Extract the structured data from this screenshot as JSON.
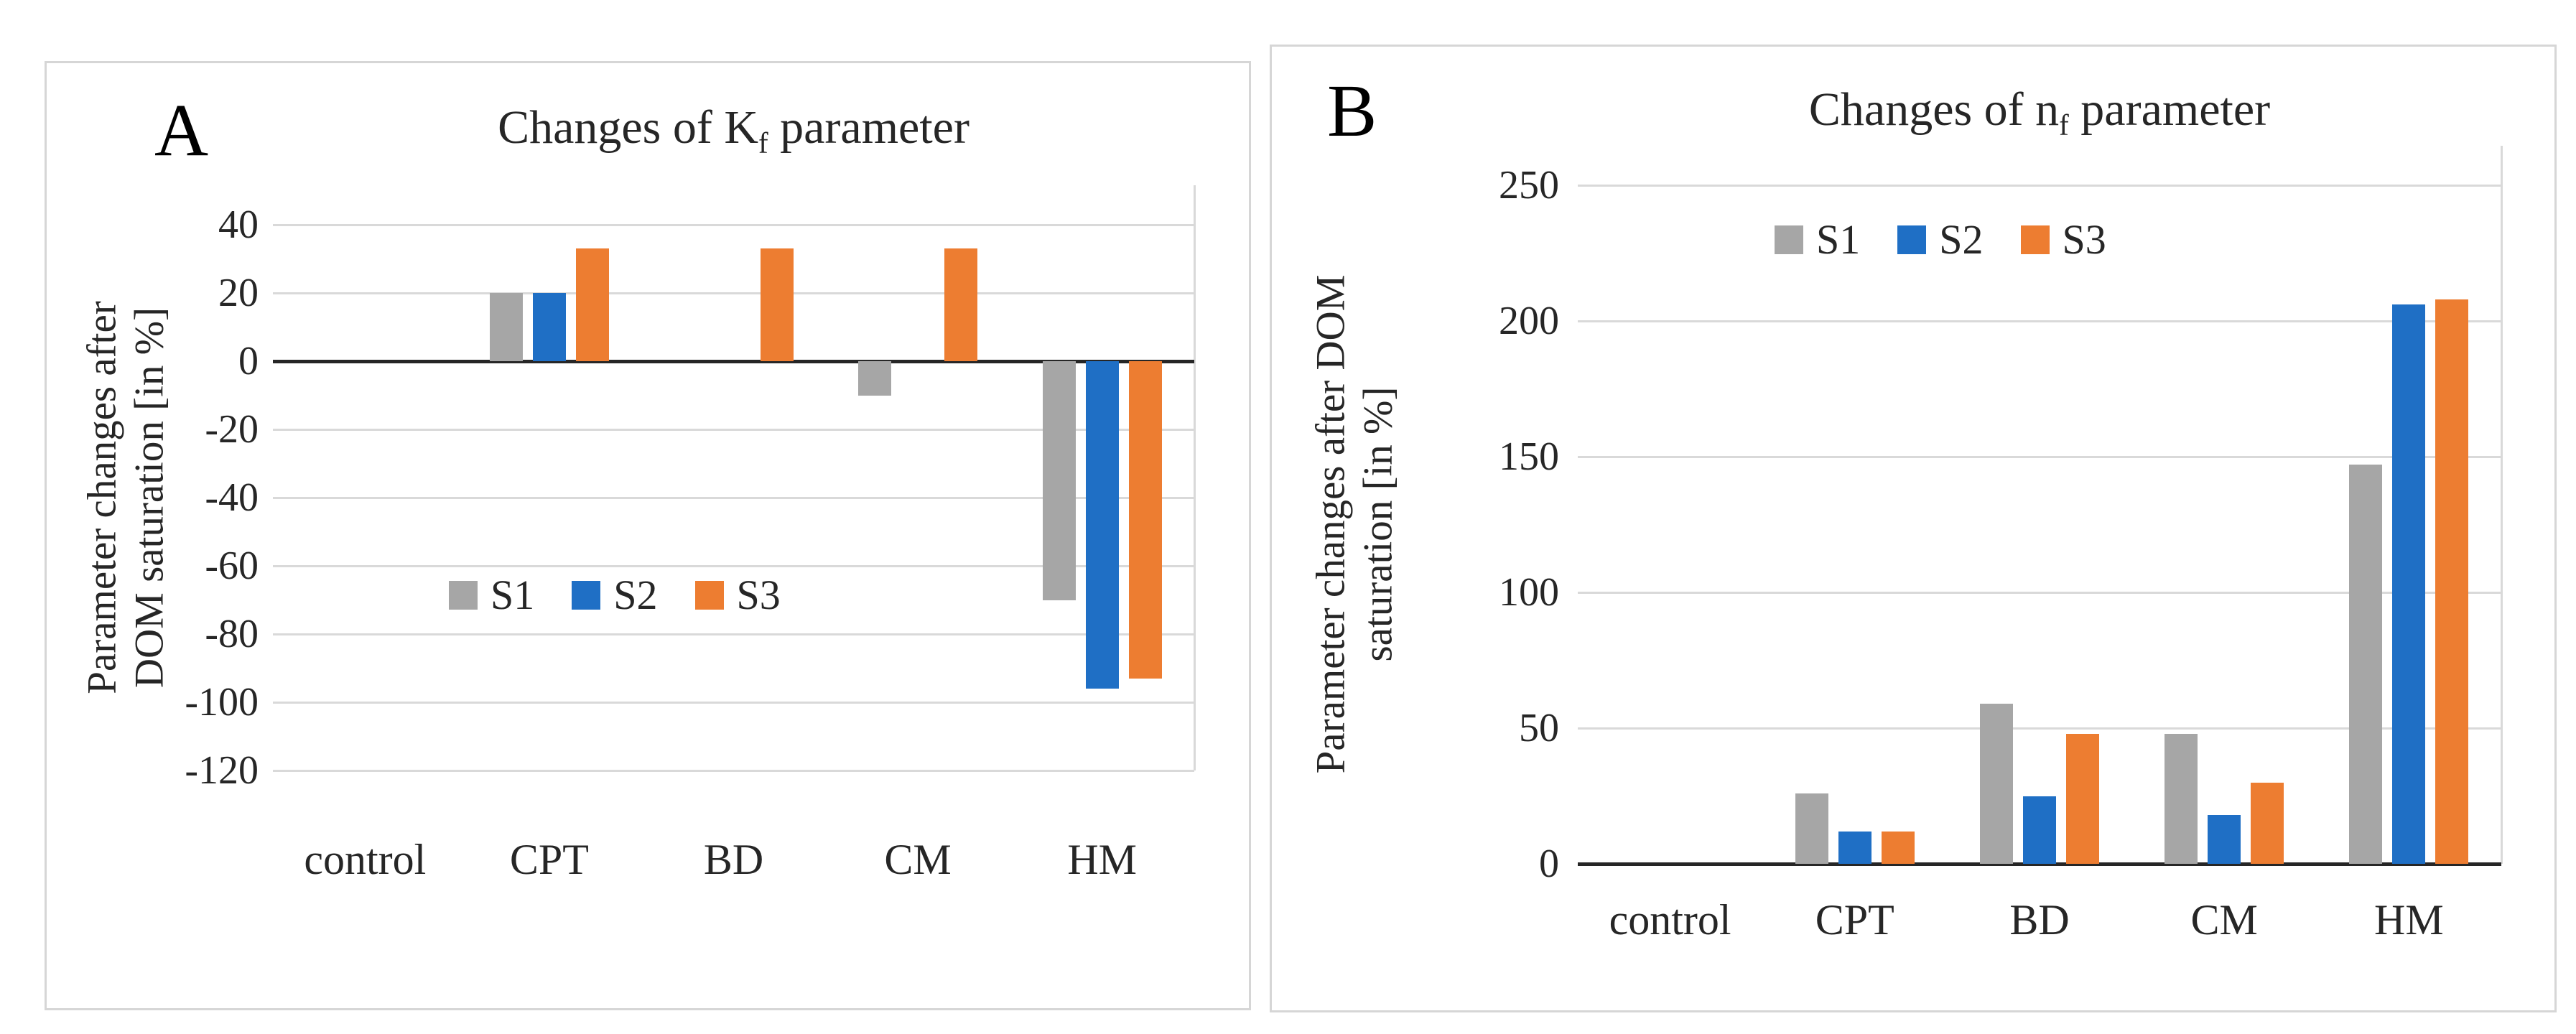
{
  "panels": [
    {
      "label": "A",
      "title": {
        "prefix": "Changes of K",
        "sub": "f",
        "suffix": " parameter"
      },
      "ylabel_line1": "Parameter changes after",
      "ylabel_line2": "DOM saturation [in %]"
    },
    {
      "label": "B",
      "title": {
        "prefix": "Changes of n",
        "sub": "f",
        "suffix": " parameter"
      },
      "ylabel_line1": "Parameter changes after DOM",
      "ylabel_line2": "saturation [in %]"
    }
  ],
  "chart_data": [
    {
      "type": "bar",
      "title": "Changes of Kf parameter",
      "xlabel": "",
      "ylabel": "Parameter changes after DOM saturation [in %]",
      "categories": [
        "control",
        "CPT",
        "BD",
        "CM",
        "HM"
      ],
      "series": [
        {
          "name": "S1",
          "color": "#a6a6a6",
          "values": [
            0,
            20,
            0,
            -10,
            -70
          ]
        },
        {
          "name": "S2",
          "color": "#1f6fc5",
          "values": [
            0,
            20,
            0,
            0,
            -96
          ]
        },
        {
          "name": "S3",
          "color": "#ed7d31",
          "values": [
            0,
            33,
            33,
            33,
            -93
          ]
        }
      ],
      "ylim": [
        -120,
        40
      ],
      "ytick_step": 20,
      "grid": true,
      "legend_position": "inside-middle"
    },
    {
      "type": "bar",
      "title": "Changes of nf parameter",
      "xlabel": "",
      "ylabel": "Parameter changes after DOM saturation [in %]",
      "categories": [
        "control",
        "CPT",
        "BD",
        "CM",
        "HM"
      ],
      "series": [
        {
          "name": "S1",
          "color": "#a6a6a6",
          "values": [
            0,
            26,
            59,
            48,
            147
          ]
        },
        {
          "name": "S2",
          "color": "#1f6fc5",
          "values": [
            0,
            12,
            25,
            18,
            206
          ]
        },
        {
          "name": "S3",
          "color": "#ed7d31",
          "values": [
            0,
            12,
            48,
            30,
            208
          ]
        }
      ],
      "ylim": [
        0,
        250
      ],
      "ytick_step": 50,
      "grid": true,
      "legend_position": "inside-top"
    }
  ],
  "colors": {
    "s1_gray": "#a6a6a6",
    "s2_blue": "#1f6fc5",
    "s3_orange": "#ed7d31",
    "gridline": "#d9d9d9",
    "axis": "#262626",
    "panel_border": "#d6d6d6"
  }
}
